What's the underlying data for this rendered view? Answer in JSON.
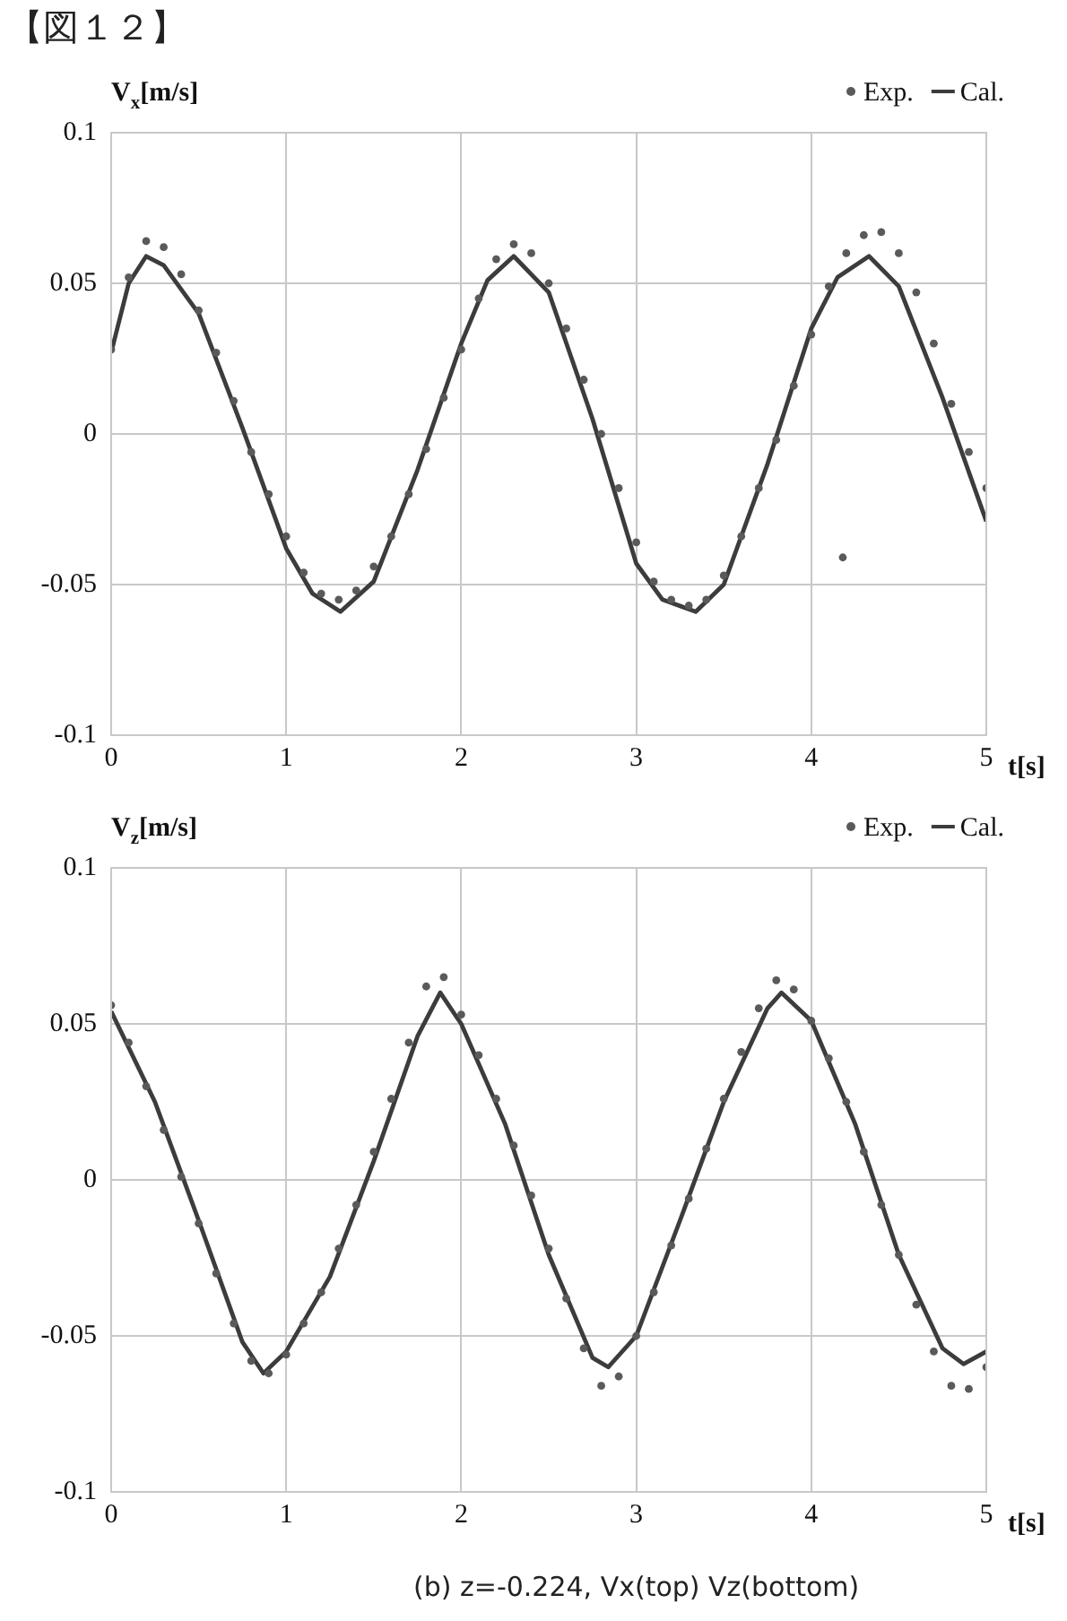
{
  "chart_data": [
    {
      "type": "line",
      "annotations": [
        "【図１２】"
      ],
      "ylabel": "V$_{x}$[m/s]",
      "xlabel": "t[s]",
      "xlim": [
        0,
        5
      ],
      "xticks": [
        0,
        1,
        2,
        3,
        4,
        5
      ],
      "ylim": [
        -0.1,
        0.1
      ],
      "yticks": [
        -0.1,
        -0.05,
        0,
        0.05,
        0.1
      ],
      "grid": true,
      "legend": "top right",
      "series": [
        {
          "name": "Exp.",
          "type": "scatter",
          "marker": "circle",
          "color": "#5a5a5a",
          "x": [
            0,
            0.1,
            0.2,
            0.3,
            0.4,
            0.5,
            0.6,
            0.7,
            0.8,
            0.9,
            1,
            1.1,
            1.2,
            1.3,
            1.4,
            1.5,
            1.6,
            1.7,
            1.8,
            1.9,
            2,
            2.1,
            2.2,
            2.3,
            2.4,
            2.5,
            2.6,
            2.7,
            2.8,
            2.9,
            3,
            3.1,
            3.2,
            3.3,
            3.4,
            3.5,
            3.6,
            3.7,
            3.8,
            3.9,
            4,
            4.1,
            4.18,
            4.2,
            4.3,
            4.4,
            4.5,
            4.6,
            4.7,
            4.8,
            4.9,
            5
          ],
          "values": [
            0.028,
            0.052,
            0.064,
            0.062,
            0.053,
            0.041,
            0.027,
            0.011,
            -0.006,
            -0.02,
            -0.034,
            -0.046,
            -0.053,
            -0.055,
            -0.052,
            -0.044,
            -0.034,
            -0.02,
            -0.005,
            0.012,
            0.028,
            0.045,
            0.058,
            0.063,
            0.06,
            0.05,
            0.035,
            0.018,
            0.0,
            -0.018,
            -0.036,
            -0.049,
            -0.055,
            -0.057,
            -0.055,
            -0.047,
            -0.034,
            -0.018,
            -0.002,
            0.016,
            0.033,
            0.049,
            -0.041,
            0.06,
            0.066,
            0.067,
            0.06,
            0.047,
            0.03,
            0.01,
            -0.006,
            -0.018
          ]
        },
        {
          "name": "Cal.",
          "type": "line",
          "marker": "none",
          "line_style": "solid",
          "color": "#3c3c3c",
          "x": [
            0,
            0.1,
            0.2,
            0.3,
            0.5,
            0.75,
            1,
            1.15,
            1.31,
            1.5,
            1.75,
            2,
            2.15,
            2.3,
            2.5,
            2.75,
            3,
            3.15,
            3.34,
            3.5,
            3.75,
            4,
            4.15,
            4.33,
            4.5,
            4.75,
            5
          ],
          "values": [
            0.027,
            0.05,
            0.059,
            0.056,
            0.04,
            0.002,
            -0.038,
            -0.053,
            -0.059,
            -0.049,
            -0.012,
            0.03,
            0.051,
            0.059,
            0.047,
            0.005,
            -0.043,
            -0.055,
            -0.059,
            -0.05,
            -0.01,
            0.035,
            0.052,
            0.059,
            0.049,
            0.012,
            -0.029
          ]
        }
      ]
    },
    {
      "type": "line",
      "annotations": [
        "(b) z=-0.224, Vx(top) Vz(bottom)"
      ],
      "ylabel": "V$_{z}$[m/s]",
      "xlabel": "t[s]",
      "xlim": [
        0,
        5
      ],
      "xticks": [
        0,
        1,
        2,
        3,
        4,
        5
      ],
      "ylim": [
        -0.1,
        0.1
      ],
      "yticks": [
        -0.1,
        -0.05,
        0,
        0.05,
        0.1
      ],
      "grid": true,
      "legend": "top right",
      "series": [
        {
          "name": "Exp.",
          "type": "scatter",
          "marker": "circle",
          "color": "#5a5a5a",
          "x": [
            0,
            0.1,
            0.2,
            0.3,
            0.4,
            0.5,
            0.6,
            0.7,
            0.8,
            0.9,
            1,
            1.1,
            1.2,
            1.3,
            1.4,
            1.5,
            1.6,
            1.7,
            1.8,
            1.9,
            2,
            2.1,
            2.2,
            2.3,
            2.4,
            2.5,
            2.6,
            2.7,
            2.8,
            2.9,
            3,
            3.1,
            3.2,
            3.3,
            3.4,
            3.5,
            3.6,
            3.7,
            3.8,
            3.9,
            4,
            4.1,
            4.2,
            4.3,
            4.4,
            4.5,
            4.6,
            4.7,
            4.8,
            4.9,
            5
          ],
          "values": [
            0.056,
            0.044,
            0.03,
            0.016,
            0.001,
            -0.014,
            -0.03,
            -0.046,
            -0.058,
            -0.062,
            -0.056,
            -0.046,
            -0.036,
            -0.022,
            -0.008,
            0.009,
            0.026,
            0.044,
            0.062,
            0.065,
            0.053,
            0.04,
            0.026,
            0.011,
            -0.005,
            -0.022,
            -0.038,
            -0.054,
            -0.066,
            -0.063,
            -0.05,
            -0.036,
            -0.021,
            -0.006,
            0.01,
            0.026,
            0.041,
            0.055,
            0.064,
            0.061,
            0.051,
            0.039,
            0.025,
            0.009,
            -0.008,
            -0.024,
            -0.04,
            -0.055,
            -0.066,
            -0.067,
            -0.06
          ]
        },
        {
          "name": "Cal.",
          "type": "line",
          "marker": "none",
          "line_style": "solid",
          "color": "#3c3c3c",
          "x": [
            0,
            0.25,
            0.5,
            0.75,
            0.87,
            1,
            1.25,
            1.5,
            1.75,
            1.88,
            2,
            2.25,
            2.5,
            2.75,
            2.84,
            3,
            3.25,
            3.5,
            3.75,
            3.83,
            4,
            4.25,
            4.5,
            4.75,
            4.87,
            5
          ],
          "values": [
            0.054,
            0.025,
            -0.013,
            -0.052,
            -0.062,
            -0.055,
            -0.031,
            0.006,
            0.046,
            0.06,
            0.05,
            0.018,
            -0.024,
            -0.057,
            -0.06,
            -0.05,
            -0.013,
            0.025,
            0.055,
            0.06,
            0.051,
            0.018,
            -0.024,
            -0.054,
            -0.059,
            -0.055
          ]
        }
      ]
    }
  ]
}
